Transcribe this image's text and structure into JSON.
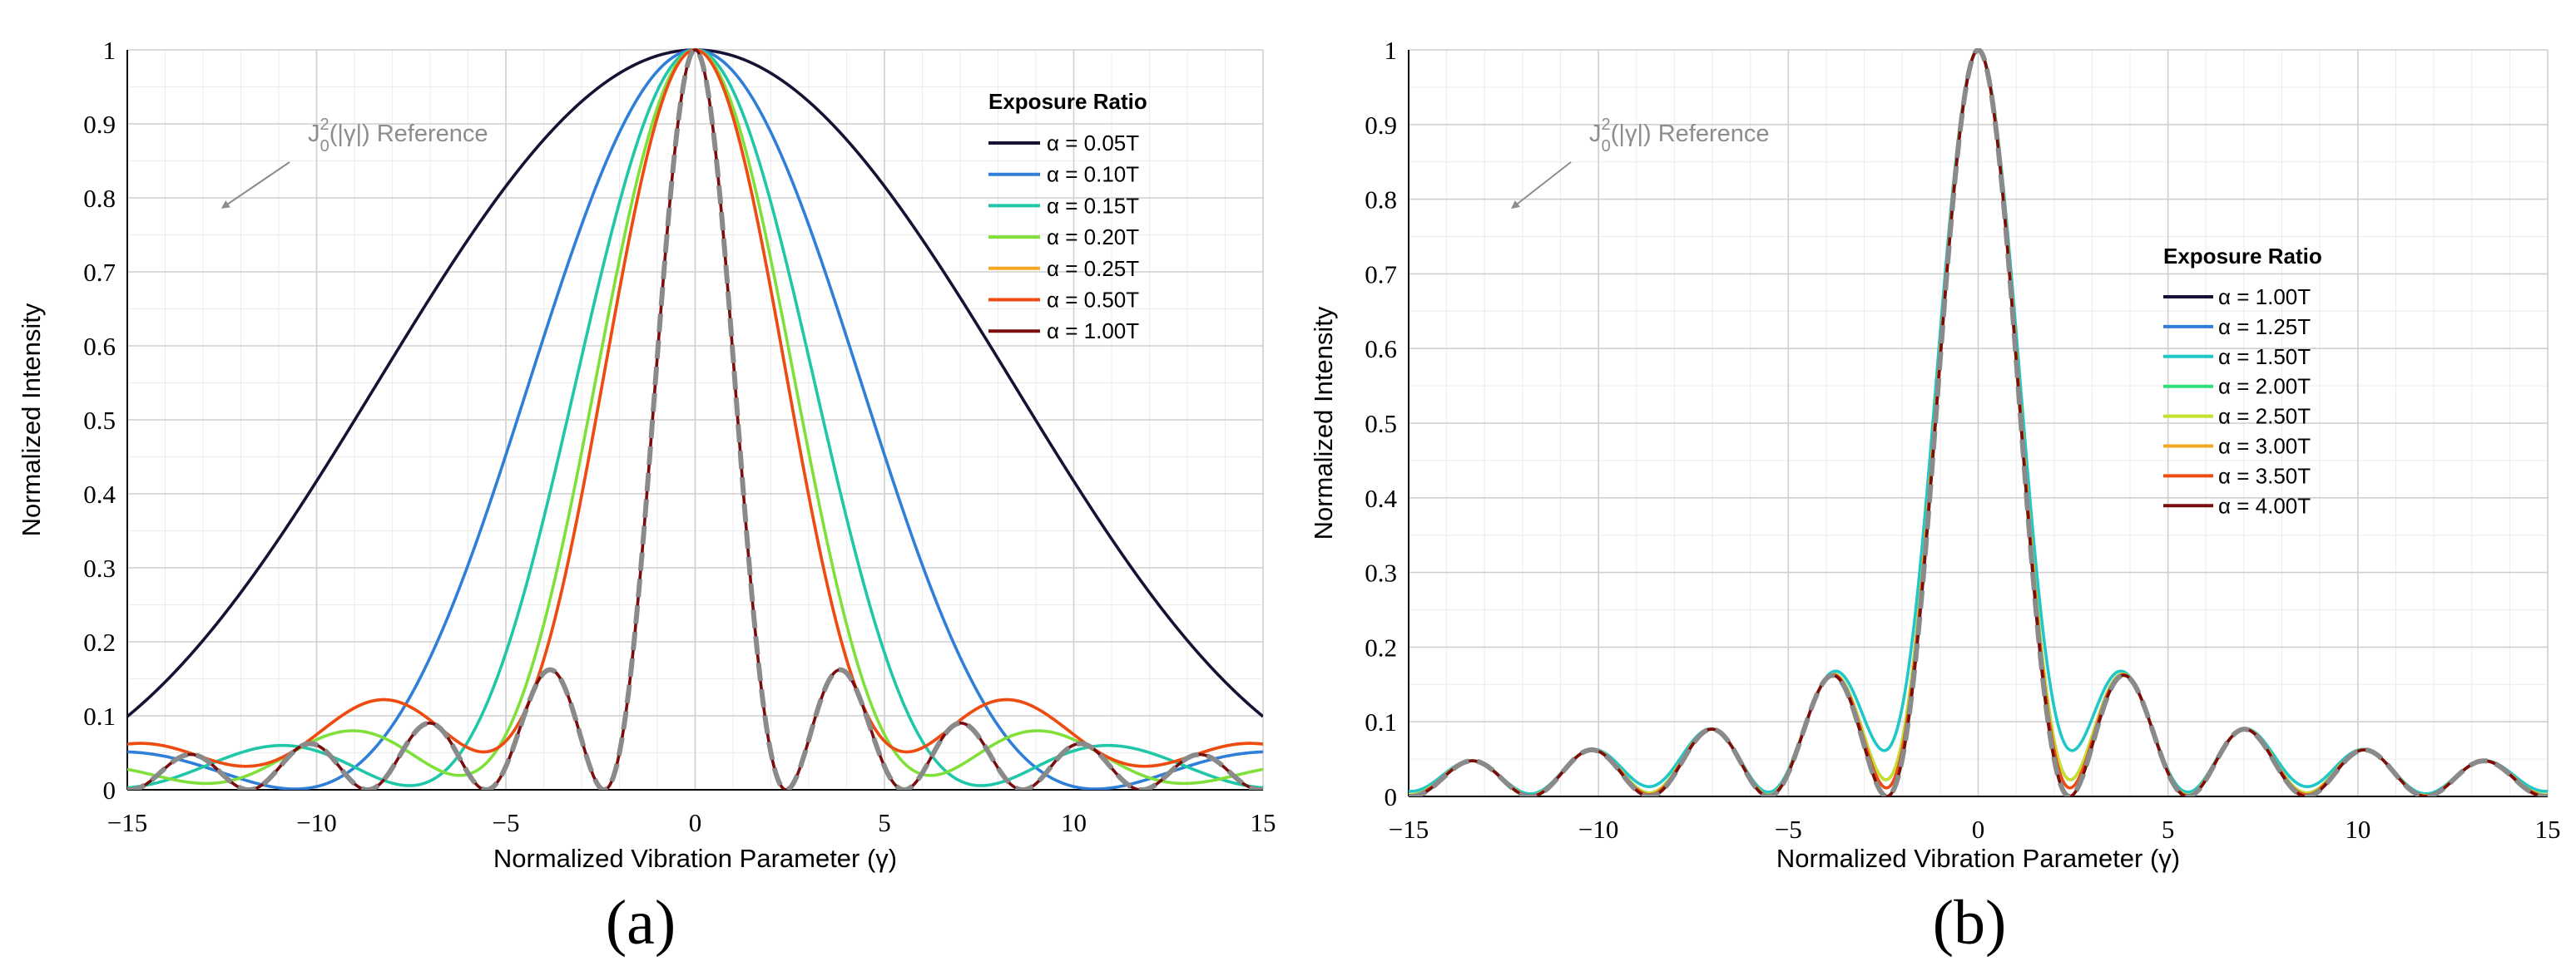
{
  "chart_data": [
    {
      "type": "line",
      "panel_label": "(a)",
      "xlabel": "Normalized Vibration Parameter (γ)",
      "ylabel": "Normalized Intensity",
      "xlim": [
        -15,
        15
      ],
      "ylim": [
        0,
        1
      ],
      "x_ticks": [
        -15,
        -10,
        -5,
        0,
        5,
        10,
        15
      ],
      "x_tick_labels": [
        "−15",
        "−10",
        "−5",
        "0",
        "5",
        "10",
        "15"
      ],
      "y_ticks": [
        0,
        0.1,
        0.2,
        0.3,
        0.4,
        0.5,
        0.6,
        0.7,
        0.8,
        0.9,
        1
      ],
      "y_tick_labels": [
        "0",
        "0.1",
        "0.2",
        "0.3",
        "0.4",
        "0.5",
        "0.6",
        "0.7",
        "0.8",
        "0.9",
        "1"
      ],
      "grid": true,
      "legend_title": "Exposure Ratio",
      "legend_position": "top-right",
      "annotation": {
        "main": "J",
        "sup": "2",
        "sub": "0",
        "rest": "(|γ|) Reference"
      },
      "series": [
        {
          "name": "α = 0.05T",
          "alpha": 0.05,
          "color": "#1a1033"
        },
        {
          "name": "α = 0.10T",
          "alpha": 0.1,
          "color": "#2f7fd8"
        },
        {
          "name": "α = 0.15T",
          "alpha": 0.15,
          "color": "#1fc7a8"
        },
        {
          "name": "α = 0.20T",
          "alpha": 0.2,
          "color": "#7fe03a"
        },
        {
          "name": "α = 0.25T",
          "alpha": 0.25,
          "color": "#f5a623"
        },
        {
          "name": "α = 0.50T",
          "alpha": 0.5,
          "color": "#ee4a13"
        },
        {
          "name": "α = 1.00T",
          "alpha": 1.0,
          "color": "#7a0d0d"
        }
      ],
      "reference": {
        "name": "J0^2(|γ|)",
        "color": "#8a8a8a",
        "dash": "dashed"
      }
    },
    {
      "type": "line",
      "panel_label": "(b)",
      "xlabel": "Normalized Vibration Parameter (γ)",
      "ylabel": "Normalized Intensity",
      "xlim": [
        -15,
        15
      ],
      "ylim": [
        0,
        1
      ],
      "x_ticks": [
        -15,
        -10,
        -5,
        0,
        5,
        10,
        15
      ],
      "x_tick_labels": [
        "−15",
        "−10",
        "−5",
        "0",
        "5",
        "10",
        "15"
      ],
      "y_ticks": [
        0,
        0.1,
        0.2,
        0.3,
        0.4,
        0.5,
        0.6,
        0.7,
        0.8,
        0.9,
        1
      ],
      "y_tick_labels": [
        "0",
        "0.1",
        "0.2",
        "0.3",
        "0.4",
        "0.5",
        "0.6",
        "0.7",
        "0.8",
        "0.9",
        "1"
      ],
      "grid": true,
      "legend_title": "Exposure Ratio",
      "legend_position": "right",
      "annotation": {
        "main": "J",
        "sup": "2",
        "sub": "0",
        "rest": "(|γ|) Reference"
      },
      "series": [
        {
          "name": "α = 1.00T",
          "alpha": 1.0,
          "color": "#1a1033"
        },
        {
          "name": "α = 1.25T",
          "alpha": 1.25,
          "color": "#2f7fd8"
        },
        {
          "name": "α = 1.50T",
          "alpha": 1.5,
          "color": "#1fc7c7"
        },
        {
          "name": "α = 2.00T",
          "alpha": 2.0,
          "color": "#2fe07a"
        },
        {
          "name": "α = 2.50T",
          "alpha": 2.5,
          "color": "#c6e02a"
        },
        {
          "name": "α = 3.00T",
          "alpha": 3.0,
          "color": "#f5a623"
        },
        {
          "name": "α = 3.50T",
          "alpha": 3.5,
          "color": "#ee4a13"
        },
        {
          "name": "α = 4.00T",
          "alpha": 4.0,
          "color": "#7a0d0d"
        }
      ],
      "reference": {
        "name": "J0^2(|γ|)",
        "color": "#8a8a8a",
        "dash": "dashed"
      }
    }
  ]
}
